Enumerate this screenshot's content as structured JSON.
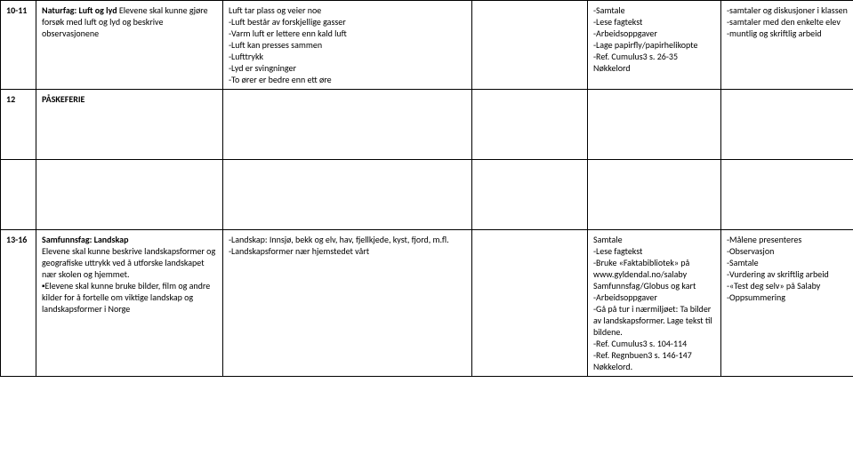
{
  "row1": {
    "weeks": "10-11",
    "col2_title": "Naturfag: Luft og lyd",
    "col2_body": "Elevene skal kunne gjøre forsøk med luft og lyd og beskrive observasjonene",
    "col3_l1": "Luft tar plass og veier noe",
    "col3_l2": "-Luft består av forskjellige gasser",
    "col3_l3": "-Varm luft er lettere enn kald luft",
    "col3_l4": "-Luft kan presses sammen",
    "col3_l5": "-Lufttrykk",
    "col3_l6": "-Lyd er svingninger",
    "col3_l7": "-To ører er bedre enn ett øre",
    "col5_l1": "-Samtale",
    "col5_l2": "-Lese fagtekst",
    "col5_l3": "-Arbeidsoppgaver",
    "col5_l4": "-Lage papirfly/papirhelikopte",
    "col5_l5": "-Ref. Cumulus3 s. 26-35",
    "col5_l6": "Nøkkelord",
    "col6_l1": "-samtaler og diskusjoner i klassen",
    "col6_l2": "-samtaler med den enkelte elev",
    "col6_l3": "-muntlig og skriftlig arbeid"
  },
  "row2": {
    "weeks": "12",
    "label": "PÅSKEFERIE"
  },
  "row3": {
    "weeks": "13-16",
    "col2_title": "Samfunnsfag: Landskap",
    "col2_p1": "Elevene skal kunne beskrive landskapsformer og geografiske uttrykk ved å utforske landskapet nær skolen og hjemmet.",
    "col2_p2": "▪Elevene skal kunne bruke bilder, film og andre kilder for å fortelle om viktige landskap og landskapsformer i Norge",
    "col3_l1": "-Landskap: Innsjø, bekk og elv, hav, fjellkjede, kyst, fjord, m.fl.",
    "col3_l2": "-Landskapsformer nær hjemstedet vårt",
    "col5_l1": "Samtale",
    "col5_l2": "-Lese fagtekst",
    "col5_l3": "-Bruke «Faktabibliotek» på www.gyldendal.no/salaby Samfunnsfag/Globus og kart",
    "col5_l4": "-Arbeidsoppgaver",
    "col5_l5": "-Gå på tur i nærmiljøet: Ta bilder av landskapsformer. Lage tekst til bildene.",
    "col5_l6": "-Ref. Cumulus3 s. 104-114",
    "col5_l7": "-Ref. Regnbuen3 s. 146-147",
    "col5_l8": "Nøkkelord.",
    "col6_l1": "-Målene presenteres",
    "col6_l2": "-Observasjon",
    "col6_l3": "-Samtale",
    "col6_l4": "-Vurdering av skriftlig arbeid",
    "col6_l5": "-«Test deg selv» på Salaby",
    "col6_l6": "-Oppsummering"
  }
}
